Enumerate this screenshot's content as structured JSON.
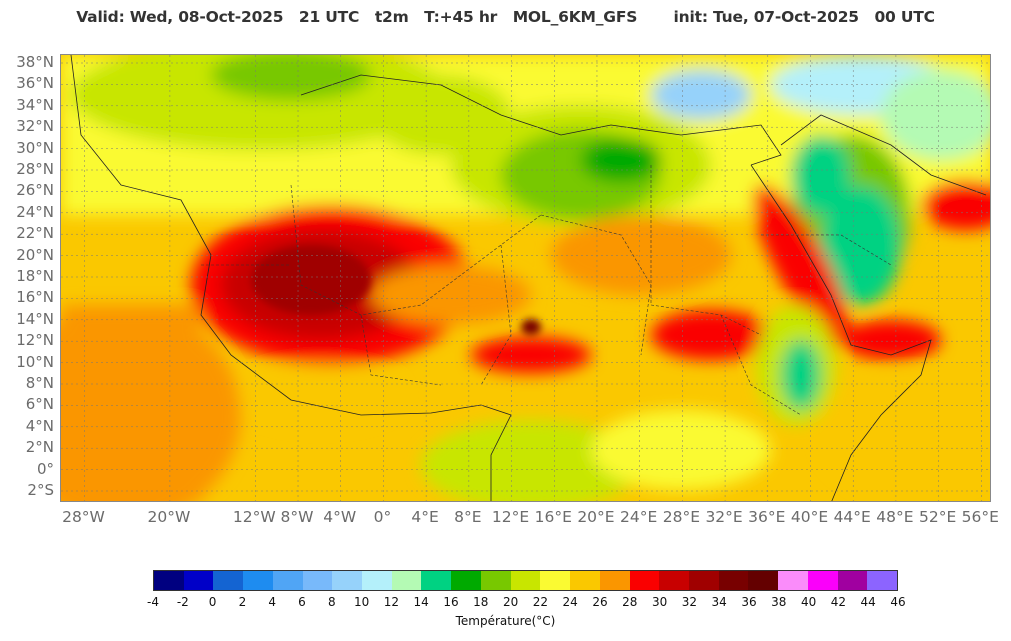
{
  "header": {
    "title": "Valid: Wed, 08-Oct-2025   21 UTC   t2m   T:+45 hr   MOL_6KM_GFS       init: Tue, 07-Oct-2025   00 UTC"
  },
  "map": {
    "variable": "t2m",
    "lat_labels": [
      "38°N",
      "36°N",
      "34°N",
      "32°N",
      "30°N",
      "28°N",
      "26°N",
      "24°N",
      "22°N",
      "20°N",
      "18°N",
      "16°N",
      "14°N",
      "12°N",
      "10°N",
      "8°N",
      "6°N",
      "4°N",
      "2°N",
      "0°",
      "2°S"
    ],
    "lon_labels": [
      "28°W",
      "20°W",
      "12°W",
      "8°W",
      "4°W",
      "0°",
      "4°E",
      "8°E",
      "12°E",
      "16°E",
      "20°E",
      "24°E",
      "28°E",
      "32°E",
      "36°E",
      "40°E",
      "44°E",
      "48°E",
      "52°E",
      "56°E"
    ]
  },
  "colorbar": {
    "title": "Température(°C)",
    "ticks": [
      "-4",
      "-2",
      "0",
      "2",
      "4",
      "6",
      "8",
      "10",
      "12",
      "14",
      "16",
      "18",
      "20",
      "22",
      "24",
      "26",
      "28",
      "30",
      "32",
      "34",
      "36",
      "38",
      "40",
      "42",
      "44",
      "46"
    ],
    "colors": [
      "#000080",
      "#0000c8",
      "#1464d2",
      "#1e8cf0",
      "#50a5f5",
      "#78b9fa",
      "#96d2fa",
      "#b4f0fa",
      "#b4fab4",
      "#00d282",
      "#00aa00",
      "#78c800",
      "#c8e600",
      "#fafa32",
      "#fac800",
      "#fa9600",
      "#fa0000",
      "#c80000",
      "#a00000",
      "#780000",
      "#640000",
      "#fa8cfa",
      "#fa00fa",
      "#a000a0",
      "#8c64ff"
    ]
  }
}
